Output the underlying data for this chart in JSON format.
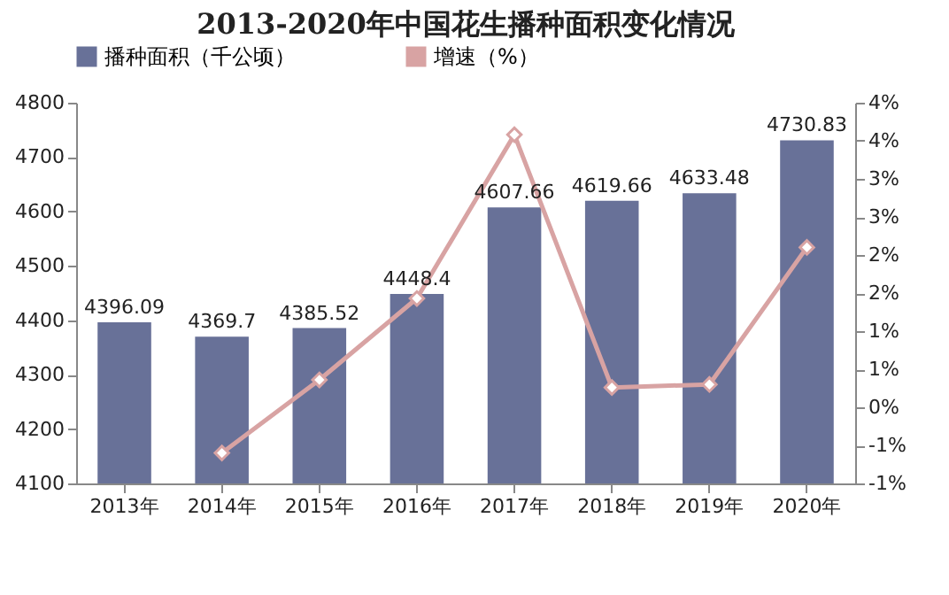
{
  "chart_data": {
    "type": "bar",
    "title": "2013-2020年中国花生播种面积变化情况",
    "categories": [
      "2013年",
      "2014年",
      "2015年",
      "2016年",
      "2017年",
      "2018年",
      "2019年",
      "2020年"
    ],
    "series": [
      {
        "name": "播种面积（千公顷）",
        "color": "#687198",
        "values": [
          4396.09,
          4369.7,
          4385.52,
          4448.4,
          4607.66,
          4619.66,
          4633.48,
          4730.83
        ],
        "value_labels": [
          "4396.09",
          "4369.7",
          "4385.52",
          "4448.4",
          "4607.66",
          "4619.66",
          "4633.48",
          "4730.83"
        ]
      },
      {
        "name": "增速（%）",
        "type": "line",
        "axis": "y2",
        "color": "#d8a3a3",
        "marker": "diamond",
        "values": [
          null,
          -0.6,
          0.36,
          1.43,
          3.58,
          0.26,
          0.3,
          2.1
        ]
      }
    ],
    "ylim": [
      4100,
      4800
    ],
    "yticks": [
      4100,
      4200,
      4300,
      4400,
      4500,
      4600,
      4700,
      4800
    ],
    "y2lim": [
      -1,
      4
    ],
    "y2ticks": [
      {
        "value": -1,
        "label": "-1%"
      },
      {
        "value": -0.5,
        "label": "-1%"
      },
      {
        "value": 0,
        "label": "0%"
      },
      {
        "value": 0.5,
        "label": "1%"
      },
      {
        "value": 1,
        "label": "1%"
      },
      {
        "value": 1.5,
        "label": "2%"
      },
      {
        "value": 2,
        "label": "2%"
      },
      {
        "value": 2.5,
        "label": "3%"
      },
      {
        "value": 3,
        "label": "3%"
      },
      {
        "value": 3.5,
        "label": "4%"
      },
      {
        "value": 4,
        "label": "4%"
      }
    ],
    "legend": "top"
  }
}
